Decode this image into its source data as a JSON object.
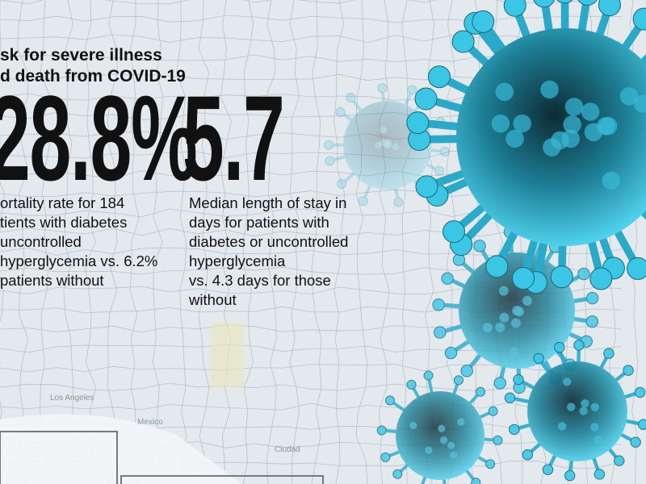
{
  "heading": {
    "lines": [
      "sk for severe illness",
      "d death from COVID-19"
    ]
  },
  "stats": [
    {
      "value": "28.8%",
      "description": [
        "ortality rate for 184",
        "tients with diabetes",
        "uncontrolled",
        "hyperglycemia vs. 6.2%",
        "patients without"
      ]
    },
    {
      "value": "5.7",
      "description": [
        "Median length of stay in",
        "days for patients with",
        "diabetes or uncontrolled",
        "hyperglycemia",
        "vs. 4.3 days for those",
        "without"
      ]
    }
  ],
  "map_labels": [
    "Los Angeles",
    "Mexico",
    "Ciudad"
  ]
}
